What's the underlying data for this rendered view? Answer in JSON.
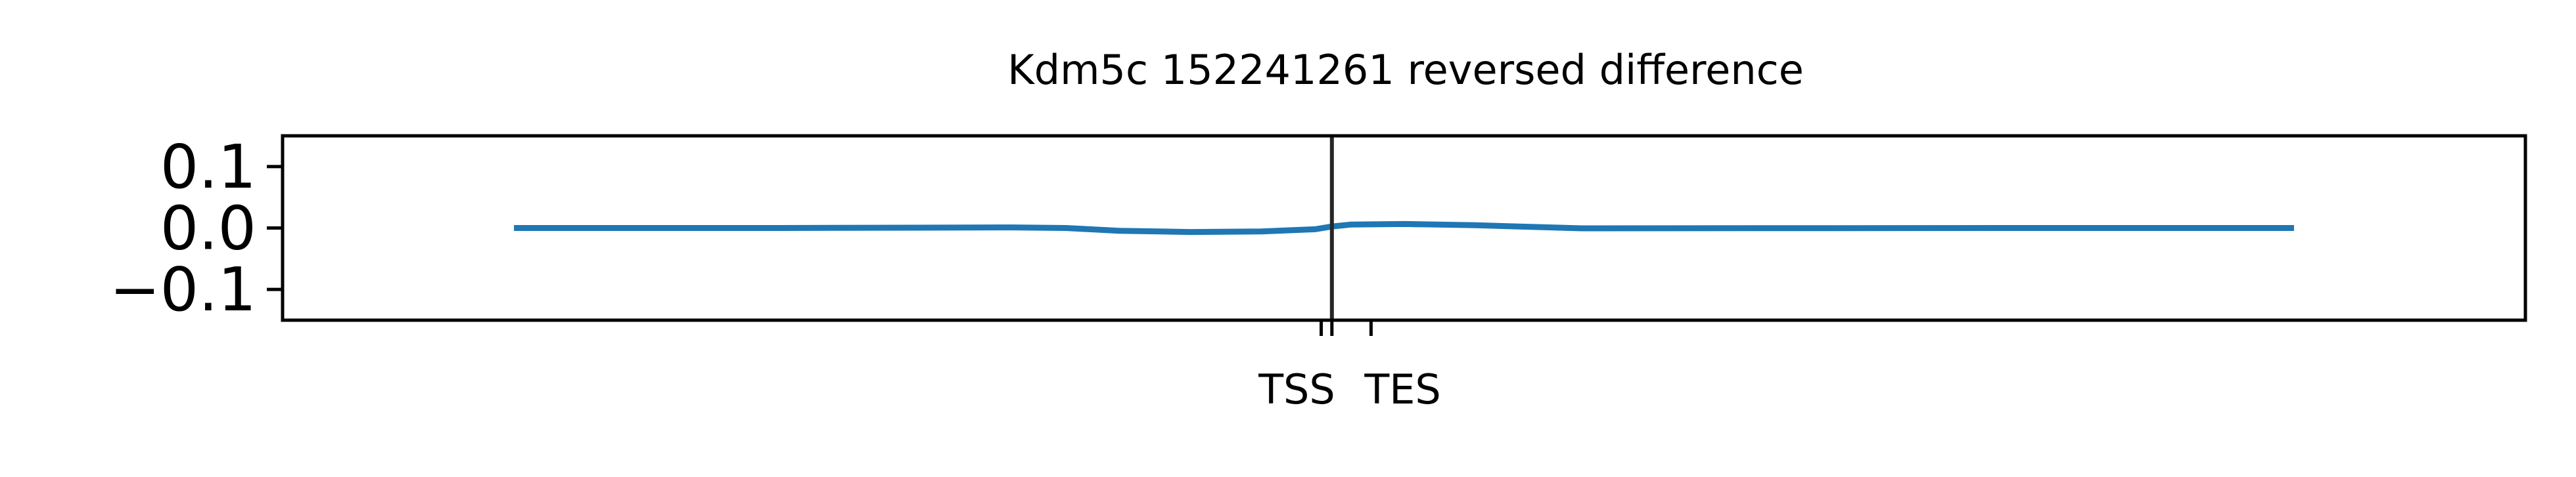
{
  "chart_data": {
    "type": "line",
    "title": "Kdm5c 152241261 reversed difference",
    "xlabel": "",
    "ylabel": "",
    "ylim": [
      -0.15,
      0.15
    ],
    "xlim": [
      -0.13,
      1.13
    ],
    "grid": false,
    "yticks": [
      0.1,
      0.0,
      -0.1
    ],
    "ytick_labels": [
      "0.1",
      "0.0",
      "−0.1"
    ],
    "xticks": [
      {
        "value": 0.4535,
        "label": ""
      },
      {
        "value": 0.4595,
        "label": "TSS"
      },
      {
        "value": 0.4815,
        "label": "TES"
      }
    ],
    "vline": 0.4595,
    "series": [
      {
        "color": "#1f77b4",
        "x": [
          0.0,
          0.15,
          0.28,
          0.31,
          0.34,
          0.38,
          0.42,
          0.45,
          0.4595,
          0.47,
          0.5,
          0.54,
          0.6,
          0.7,
          0.85,
          1.0
        ],
        "y": [
          0.0,
          0.0,
          0.001,
          0.0,
          -0.0045,
          -0.0065,
          -0.0055,
          -0.002,
          0.0025,
          0.0055,
          0.0065,
          0.0045,
          -0.0005,
          -0.0003,
          0.0,
          0.0
        ]
      }
    ]
  }
}
